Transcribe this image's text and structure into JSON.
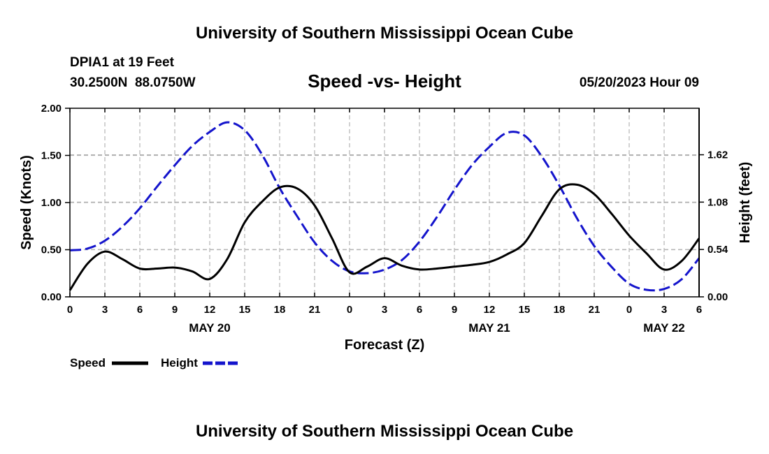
{
  "header": {
    "title_top": "University of Southern Mississippi Ocean Cube",
    "station": "DPIA1 at 19 Feet",
    "coords": "30.2500N  88.0750W",
    "subtitle": "Speed -vs- Height",
    "datetime": "05/20/2023 Hour 09",
    "title_bottom": "University of Southern Mississippi Ocean Cube"
  },
  "legend": {
    "speed_label": "Speed",
    "height_label": "Height"
  },
  "chart_data": {
    "type": "line",
    "title": "Speed -vs- Height",
    "xlabel": "Forecast (Z)",
    "ylabel": "Speed (Knots)",
    "y2label": "Height (feet)",
    "x_range_hours": [
      0,
      54
    ],
    "ylim": [
      0,
      2
    ],
    "y2lim": [
      0,
      2.15
    ],
    "x_ticks": [
      {
        "h": 0,
        "label": "0"
      },
      {
        "h": 3,
        "label": "3"
      },
      {
        "h": 6,
        "label": "6"
      },
      {
        "h": 9,
        "label": "9"
      },
      {
        "h": 12,
        "label": "12"
      },
      {
        "h": 15,
        "label": "15"
      },
      {
        "h": 18,
        "label": "18"
      },
      {
        "h": 21,
        "label": "21"
      },
      {
        "h": 24,
        "label": "0"
      },
      {
        "h": 27,
        "label": "3"
      },
      {
        "h": 30,
        "label": "6"
      },
      {
        "h": 33,
        "label": "9"
      },
      {
        "h": 36,
        "label": "12"
      },
      {
        "h": 39,
        "label": "15"
      },
      {
        "h": 42,
        "label": "18"
      },
      {
        "h": 45,
        "label": "21"
      },
      {
        "h": 48,
        "label": "0"
      },
      {
        "h": 51,
        "label": "3"
      },
      {
        "h": 54,
        "label": "6"
      }
    ],
    "date_labels": [
      {
        "h": 12,
        "label": "MAY 20"
      },
      {
        "h": 36,
        "label": "MAY 21"
      },
      {
        "h": 51,
        "label": "MAY 22"
      }
    ],
    "y_ticks": [
      {
        "v": 0,
        "label": "0.00"
      },
      {
        "v": 0.5,
        "label": "0.50"
      },
      {
        "v": 1.0,
        "label": "1.00"
      },
      {
        "v": 1.5,
        "label": "1.50"
      },
      {
        "v": 2.0,
        "label": "2.00"
      }
    ],
    "y2_ticks": [
      {
        "v": 0,
        "label": "0.00"
      },
      {
        "v": 0.54,
        "label": "0.54"
      },
      {
        "v": 1.08,
        "label": "1.08"
      },
      {
        "v": 1.62,
        "label": "1.62"
      }
    ],
    "series": [
      {
        "name": "Speed",
        "axis": "left",
        "color": "#000000",
        "dash": "solid",
        "points": [
          [
            0,
            0.07
          ],
          [
            1.5,
            0.35
          ],
          [
            3,
            0.48
          ],
          [
            4.5,
            0.4
          ],
          [
            6,
            0.3
          ],
          [
            7.5,
            0.3
          ],
          [
            9,
            0.31
          ],
          [
            10.5,
            0.27
          ],
          [
            12,
            0.19
          ],
          [
            13.5,
            0.4
          ],
          [
            15,
            0.79
          ],
          [
            16.5,
            1.01
          ],
          [
            18,
            1.16
          ],
          [
            19.5,
            1.15
          ],
          [
            21,
            0.97
          ],
          [
            22.5,
            0.62
          ],
          [
            24,
            0.26
          ],
          [
            25.5,
            0.32
          ],
          [
            27,
            0.41
          ],
          [
            28.5,
            0.33
          ],
          [
            30,
            0.29
          ],
          [
            31.5,
            0.3
          ],
          [
            33,
            0.32
          ],
          [
            34.5,
            0.34
          ],
          [
            36,
            0.37
          ],
          [
            37.5,
            0.45
          ],
          [
            39,
            0.57
          ],
          [
            40.5,
            0.86
          ],
          [
            42,
            1.14
          ],
          [
            43.5,
            1.19
          ],
          [
            45,
            1.09
          ],
          [
            46.5,
            0.88
          ],
          [
            48,
            0.65
          ],
          [
            49.5,
            0.46
          ],
          [
            51,
            0.29
          ],
          [
            52.5,
            0.38
          ],
          [
            54,
            0.62
          ]
        ]
      },
      {
        "name": "Height",
        "axis": "right",
        "color": "#1414cc",
        "dash": "dashed",
        "points": [
          [
            0,
            0.53
          ],
          [
            1.5,
            0.55
          ],
          [
            3,
            0.64
          ],
          [
            4.5,
            0.8
          ],
          [
            6,
            1.01
          ],
          [
            7.5,
            1.26
          ],
          [
            9,
            1.5
          ],
          [
            10.5,
            1.72
          ],
          [
            12,
            1.88
          ],
          [
            13.5,
            1.99
          ],
          [
            15,
            1.9
          ],
          [
            16.5,
            1.62
          ],
          [
            18,
            1.24
          ],
          [
            19.5,
            0.92
          ],
          [
            21,
            0.62
          ],
          [
            22.5,
            0.41
          ],
          [
            24,
            0.29
          ],
          [
            25.5,
            0.27
          ],
          [
            27,
            0.31
          ],
          [
            28.5,
            0.42
          ],
          [
            30,
            0.63
          ],
          [
            31.5,
            0.91
          ],
          [
            33,
            1.22
          ],
          [
            34.5,
            1.5
          ],
          [
            36,
            1.71
          ],
          [
            37.5,
            1.87
          ],
          [
            39,
            1.84
          ],
          [
            40.5,
            1.6
          ],
          [
            42,
            1.27
          ],
          [
            43.5,
            0.9
          ],
          [
            45,
            0.58
          ],
          [
            46.5,
            0.34
          ],
          [
            48,
            0.15
          ],
          [
            49.5,
            0.08
          ],
          [
            51,
            0.09
          ],
          [
            52.5,
            0.2
          ],
          [
            54,
            0.44
          ]
        ]
      }
    ]
  }
}
